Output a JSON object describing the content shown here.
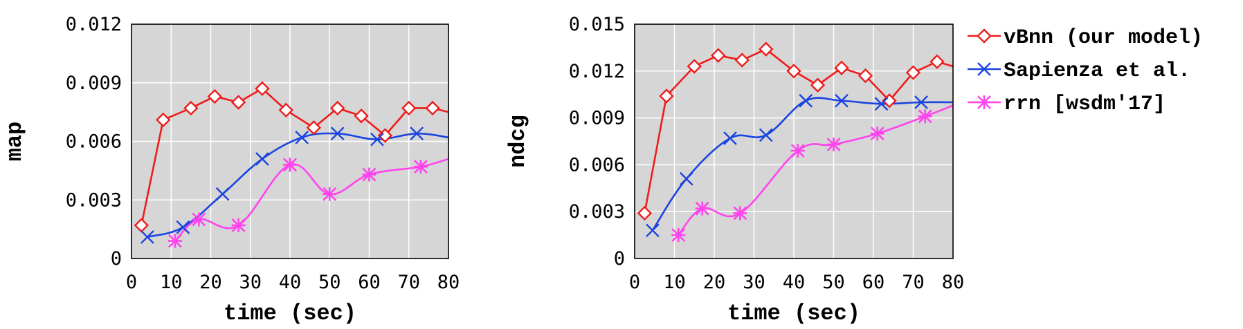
{
  "legend": [
    {
      "label": "vBnn (our model)",
      "color": "#ee1c1c",
      "marker": "diamond"
    },
    {
      "label": "Sapienza et al.",
      "color": "#1a44e0",
      "marker": "x"
    },
    {
      "label": "rrn [wsdm'17]",
      "color": "#ff44ee",
      "marker": "asterisk"
    }
  ],
  "chart_data": [
    {
      "type": "line",
      "xlabel": "time (sec)",
      "ylabel": "map",
      "xlim": [
        0,
        80
      ],
      "ylim": [
        0,
        0.012
      ],
      "xticks": [
        "0",
        "10",
        "20",
        "30",
        "40",
        "50",
        "60",
        "70",
        "80"
      ],
      "yticks": [
        "0",
        "0.003",
        "0.006",
        "0.009",
        "0.012"
      ],
      "grid": true,
      "series": [
        {
          "name": "vBnn (our model)",
          "color": "#ee1c1c",
          "marker": "diamond",
          "x": [
            2.5,
            8,
            15,
            21,
            27,
            33,
            39,
            46,
            52,
            58,
            64,
            70,
            76,
            80
          ],
          "y": [
            0.0017,
            0.0071,
            0.0077,
            0.0083,
            0.008,
            0.0087,
            0.0076,
            0.0067,
            0.0077,
            0.0073,
            0.0063,
            0.0077,
            0.0077,
            0.0075
          ],
          "markers": [
            true,
            true,
            true,
            true,
            true,
            true,
            true,
            true,
            true,
            true,
            true,
            true,
            true,
            false
          ]
        },
        {
          "name": "Sapienza et al.",
          "color": "#1a44e0",
          "marker": "x",
          "x": [
            4,
            13,
            23,
            33,
            43,
            52,
            62,
            72,
            80
          ],
          "y": [
            0.0011,
            0.0016,
            0.0033,
            0.0051,
            0.0062,
            0.0064,
            0.0061,
            0.0064,
            0.0062
          ],
          "markers": [
            true,
            true,
            true,
            true,
            true,
            true,
            true,
            true,
            false
          ]
        },
        {
          "name": "rrn [wsdm'17]",
          "color": "#ff44ee",
          "marker": "asterisk",
          "x": [
            11,
            17,
            27,
            40,
            50,
            60,
            73,
            80
          ],
          "y": [
            0.0009,
            0.002,
            0.0017,
            0.0048,
            0.0033,
            0.0043,
            0.0047,
            0.0051
          ],
          "markers": [
            true,
            true,
            true,
            true,
            true,
            true,
            true,
            false
          ]
        }
      ]
    },
    {
      "type": "line",
      "xlabel": "time (sec)",
      "ylabel": "ndcg",
      "xlim": [
        0,
        80
      ],
      "ylim": [
        0,
        0.015
      ],
      "xticks": [
        "0",
        "10",
        "20",
        "30",
        "40",
        "50",
        "60",
        "70",
        "80"
      ],
      "yticks": [
        "0",
        "0.003",
        "0.006",
        "0.009",
        "0.012",
        "0.015"
      ],
      "grid": true,
      "series": [
        {
          "name": "vBnn (our model)",
          "color": "#ee1c1c",
          "marker": "diamond",
          "x": [
            2.5,
            8,
            15,
            21,
            27,
            33,
            40,
            46,
            52,
            58,
            64,
            70,
            76,
            80
          ],
          "y": [
            0.0029,
            0.0104,
            0.0123,
            0.013,
            0.0127,
            0.0134,
            0.012,
            0.0111,
            0.0122,
            0.0117,
            0.0101,
            0.0119,
            0.0126,
            0.0123
          ],
          "markers": [
            true,
            true,
            true,
            true,
            true,
            true,
            true,
            true,
            true,
            true,
            true,
            true,
            true,
            false
          ]
        },
        {
          "name": "Sapienza et al.",
          "color": "#1a44e0",
          "marker": "x",
          "x": [
            4.5,
            13,
            24,
            33,
            43,
            52,
            62,
            72,
            80
          ],
          "y": [
            0.0018,
            0.0051,
            0.0077,
            0.0079,
            0.0101,
            0.0101,
            0.0099,
            0.01,
            0.01
          ],
          "markers": [
            true,
            true,
            true,
            true,
            true,
            true,
            true,
            true,
            false
          ]
        },
        {
          "name": "rrn [wsdm'17]",
          "color": "#ff44ee",
          "marker": "asterisk",
          "x": [
            11,
            17,
            26.5,
            41,
            50,
            61,
            73,
            80
          ],
          "y": [
            0.0015,
            0.0032,
            0.0029,
            0.0069,
            0.0073,
            0.008,
            0.0091,
            0.0098
          ],
          "markers": [
            true,
            true,
            true,
            true,
            true,
            true,
            true,
            false
          ]
        }
      ]
    }
  ]
}
